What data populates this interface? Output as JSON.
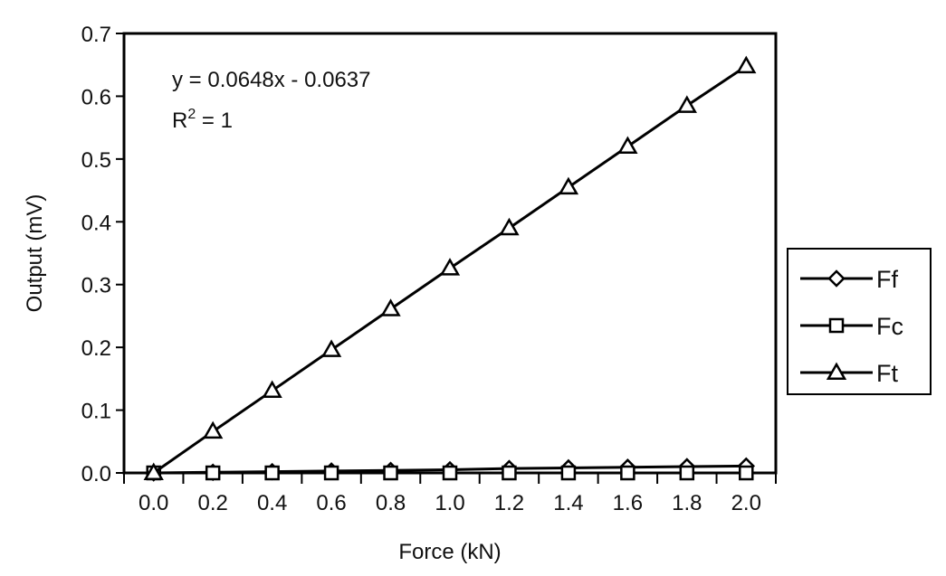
{
  "chart_data": {
    "type": "line",
    "xlabel": "Force (kN)",
    "ylabel": "Output (mV)",
    "xlim": [
      -0.1,
      2.1
    ],
    "ylim": [
      0,
      0.7
    ],
    "x_ticks": [
      "0.0",
      "0.2",
      "0.4",
      "0.6",
      "0.8",
      "1.0",
      "1.2",
      "1.4",
      "1.6",
      "1.8",
      "2.0"
    ],
    "y_ticks": [
      "0.0",
      "0.1",
      "0.2",
      "0.3",
      "0.4",
      "0.5",
      "0.6",
      "0.7"
    ],
    "x": [
      0.0,
      0.2,
      0.4,
      0.6,
      0.8,
      1.0,
      1.2,
      1.4,
      1.6,
      1.8,
      2.0
    ],
    "series": [
      {
        "name": "Ff",
        "marker": "diamond",
        "values": [
          0.0,
          0.001,
          0.002,
          0.003,
          0.004,
          0.005,
          0.007,
          0.008,
          0.009,
          0.01,
          0.011
        ]
      },
      {
        "name": "Fc",
        "marker": "square",
        "values": [
          0.0,
          0.0,
          0.0,
          0.0,
          0.0,
          0.0,
          0.0,
          0.0,
          0.0,
          0.0,
          0.0
        ]
      },
      {
        "name": "Ft",
        "marker": "triangle",
        "values": [
          0.0,
          0.066,
          0.131,
          0.196,
          0.261,
          0.326,
          0.39,
          0.455,
          0.52,
          0.585,
          0.648
        ]
      }
    ],
    "annotation": {
      "equation": "y = 0.0648x - 0.0637",
      "r2_prefix": "R",
      "r2_sup": "2",
      "r2_suffix": " = 1"
    },
    "grid": false,
    "legend_position": "right",
    "colors": {
      "line": "#000000",
      "marker_fill": "#ffffff",
      "background": "#ffffff"
    }
  }
}
